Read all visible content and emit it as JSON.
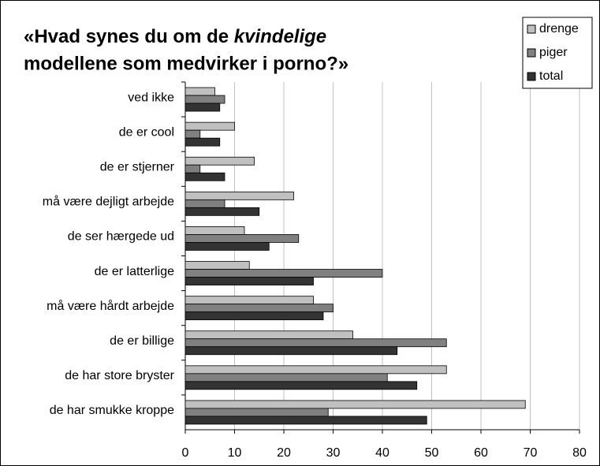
{
  "chart_data": {
    "type": "barh",
    "title": [
      "«Hvad synes du om de",
      "kvindelige",
      "modellene som medvirker i porno?»"
    ],
    "categories": [
      "ved ikke",
      "de er cool",
      "de er stjerner",
      "må være dejligt arbejde",
      "de ser hærgede ud",
      "de er latterlige",
      "må være hårdt arbejde",
      "de er billige",
      "de har store bryster",
      "de har smukke kroppe"
    ],
    "series": [
      {
        "name": "drenge",
        "color": "#c0c0c0",
        "values": [
          6,
          10,
          14,
          22,
          12,
          13,
          26,
          34,
          53,
          69
        ]
      },
      {
        "name": "piger",
        "color": "#808080",
        "values": [
          8,
          3,
          3,
          8,
          23,
          40,
          30,
          53,
          41,
          29
        ]
      },
      {
        "name": "total",
        "color": "#333333",
        "values": [
          7,
          7,
          8,
          15,
          17,
          26,
          28,
          43,
          47,
          49
        ]
      }
    ],
    "xlim": [
      0,
      80
    ],
    "xticks": [
      0,
      10,
      20,
      30,
      40,
      50,
      60,
      70,
      80
    ],
    "grid": true,
    "legend": "top-right"
  }
}
